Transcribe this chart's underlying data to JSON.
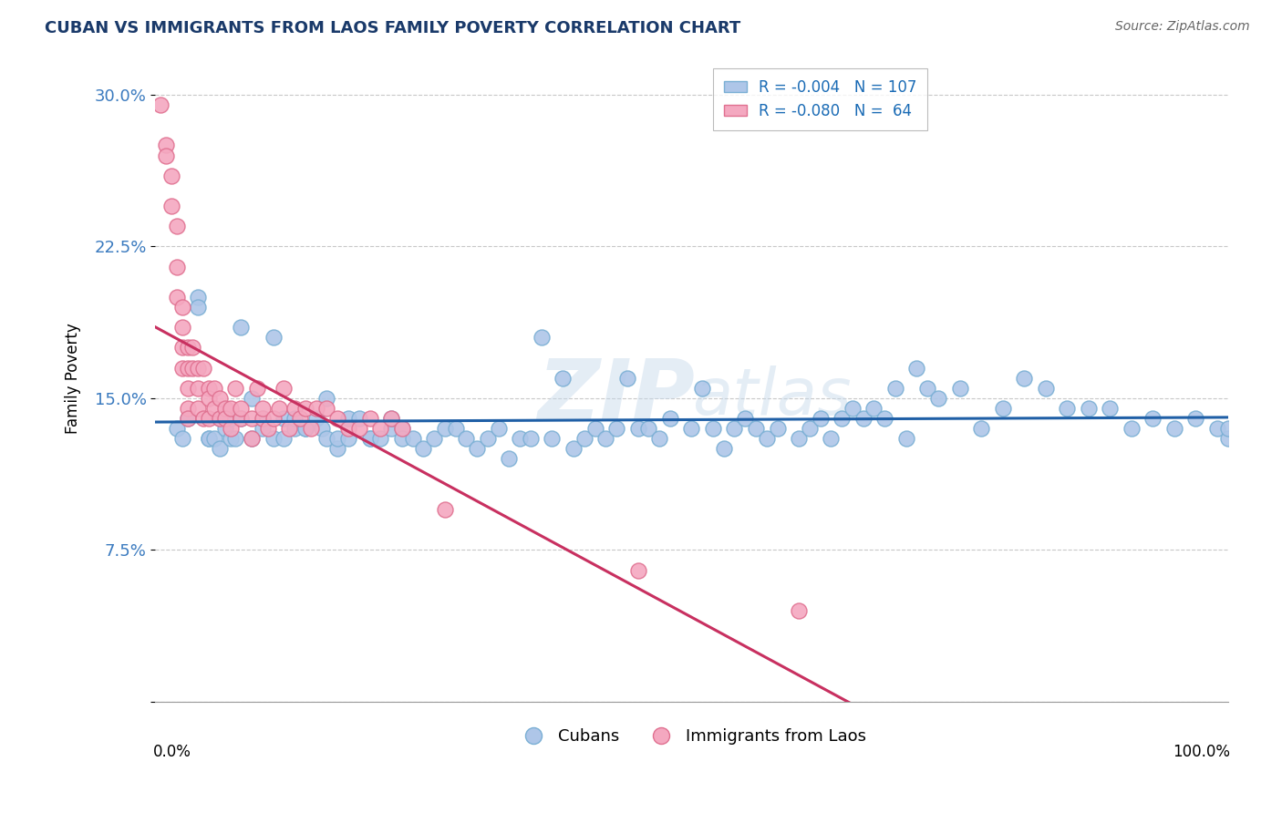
{
  "title": "CUBAN VS IMMIGRANTS FROM LAOS FAMILY POVERTY CORRELATION CHART",
  "source": "Source: ZipAtlas.com",
  "ylabel": "Family Poverty",
  "yticks": [
    0.0,
    0.075,
    0.15,
    0.225,
    0.3
  ],
  "ytick_labels": [
    "",
    "7.5%",
    "15.0%",
    "22.5%",
    "30.0%"
  ],
  "xlim": [
    0.0,
    1.0
  ],
  "ylim": [
    0.0,
    0.32
  ],
  "legend_r1": "R = -0.004",
  "legend_n1": "N = 107",
  "legend_r2": "R = -0.080",
  "legend_n2": "N =  64",
  "blue_color": "#aec6e8",
  "pink_color": "#f4a8c0",
  "blue_edge": "#7aafd4",
  "pink_edge": "#e07090",
  "trend_blue_color": "#1f5fa6",
  "trend_pink_color": "#c83060",
  "dashed_color": "#e090a8",
  "watermark_zip": "ZIP",
  "watermark_atlas": "atlas",
  "cubans_x": [
    0.02,
    0.025,
    0.03,
    0.04,
    0.04,
    0.05,
    0.05,
    0.055,
    0.06,
    0.06,
    0.065,
    0.07,
    0.07,
    0.075,
    0.08,
    0.08,
    0.09,
    0.09,
    0.1,
    0.1,
    0.11,
    0.11,
    0.12,
    0.12,
    0.13,
    0.13,
    0.14,
    0.14,
    0.15,
    0.155,
    0.16,
    0.16,
    0.17,
    0.17,
    0.18,
    0.18,
    0.19,
    0.2,
    0.2,
    0.21,
    0.22,
    0.22,
    0.23,
    0.23,
    0.24,
    0.25,
    0.26,
    0.27,
    0.28,
    0.29,
    0.3,
    0.31,
    0.32,
    0.33,
    0.34,
    0.35,
    0.36,
    0.37,
    0.38,
    0.39,
    0.4,
    0.41,
    0.42,
    0.43,
    0.44,
    0.45,
    0.46,
    0.47,
    0.48,
    0.5,
    0.51,
    0.52,
    0.53,
    0.54,
    0.55,
    0.56,
    0.57,
    0.58,
    0.6,
    0.61,
    0.62,
    0.63,
    0.64,
    0.65,
    0.66,
    0.67,
    0.68,
    0.69,
    0.7,
    0.71,
    0.72,
    0.73,
    0.75,
    0.77,
    0.79,
    0.81,
    0.83,
    0.85,
    0.87,
    0.89,
    0.91,
    0.93,
    0.95,
    0.97,
    0.99,
    1.0,
    1.0
  ],
  "cubans_y": [
    0.135,
    0.13,
    0.14,
    0.2,
    0.195,
    0.13,
    0.13,
    0.13,
    0.14,
    0.125,
    0.135,
    0.13,
    0.14,
    0.13,
    0.14,
    0.185,
    0.15,
    0.13,
    0.135,
    0.14,
    0.18,
    0.13,
    0.13,
    0.14,
    0.135,
    0.14,
    0.135,
    0.135,
    0.14,
    0.135,
    0.13,
    0.15,
    0.125,
    0.13,
    0.14,
    0.13,
    0.14,
    0.13,
    0.13,
    0.13,
    0.135,
    0.14,
    0.135,
    0.13,
    0.13,
    0.125,
    0.13,
    0.135,
    0.135,
    0.13,
    0.125,
    0.13,
    0.135,
    0.12,
    0.13,
    0.13,
    0.18,
    0.13,
    0.16,
    0.125,
    0.13,
    0.135,
    0.13,
    0.135,
    0.16,
    0.135,
    0.135,
    0.13,
    0.14,
    0.135,
    0.155,
    0.135,
    0.125,
    0.135,
    0.14,
    0.135,
    0.13,
    0.135,
    0.13,
    0.135,
    0.14,
    0.13,
    0.14,
    0.145,
    0.14,
    0.145,
    0.14,
    0.155,
    0.13,
    0.165,
    0.155,
    0.15,
    0.155,
    0.135,
    0.145,
    0.16,
    0.155,
    0.145,
    0.145,
    0.145,
    0.135,
    0.14,
    0.135,
    0.14,
    0.135,
    0.13,
    0.135
  ],
  "laos_x": [
    0.005,
    0.01,
    0.01,
    0.015,
    0.015,
    0.02,
    0.02,
    0.02,
    0.025,
    0.025,
    0.025,
    0.025,
    0.03,
    0.03,
    0.03,
    0.03,
    0.03,
    0.035,
    0.035,
    0.04,
    0.04,
    0.04,
    0.045,
    0.045,
    0.05,
    0.05,
    0.05,
    0.055,
    0.055,
    0.06,
    0.06,
    0.065,
    0.065,
    0.07,
    0.07,
    0.075,
    0.08,
    0.08,
    0.09,
    0.09,
    0.095,
    0.1,
    0.1,
    0.105,
    0.11,
    0.115,
    0.12,
    0.125,
    0.13,
    0.135,
    0.14,
    0.145,
    0.15,
    0.16,
    0.17,
    0.18,
    0.19,
    0.2,
    0.21,
    0.22,
    0.23,
    0.27,
    0.45,
    0.6
  ],
  "laos_y": [
    0.295,
    0.275,
    0.27,
    0.26,
    0.245,
    0.235,
    0.215,
    0.2,
    0.195,
    0.185,
    0.175,
    0.165,
    0.175,
    0.165,
    0.155,
    0.145,
    0.14,
    0.175,
    0.165,
    0.165,
    0.155,
    0.145,
    0.165,
    0.14,
    0.155,
    0.15,
    0.14,
    0.155,
    0.145,
    0.15,
    0.14,
    0.145,
    0.14,
    0.145,
    0.135,
    0.155,
    0.14,
    0.145,
    0.14,
    0.13,
    0.155,
    0.14,
    0.145,
    0.135,
    0.14,
    0.145,
    0.155,
    0.135,
    0.145,
    0.14,
    0.145,
    0.135,
    0.145,
    0.145,
    0.14,
    0.135,
    0.135,
    0.14,
    0.135,
    0.14,
    0.135,
    0.095,
    0.065,
    0.045
  ]
}
